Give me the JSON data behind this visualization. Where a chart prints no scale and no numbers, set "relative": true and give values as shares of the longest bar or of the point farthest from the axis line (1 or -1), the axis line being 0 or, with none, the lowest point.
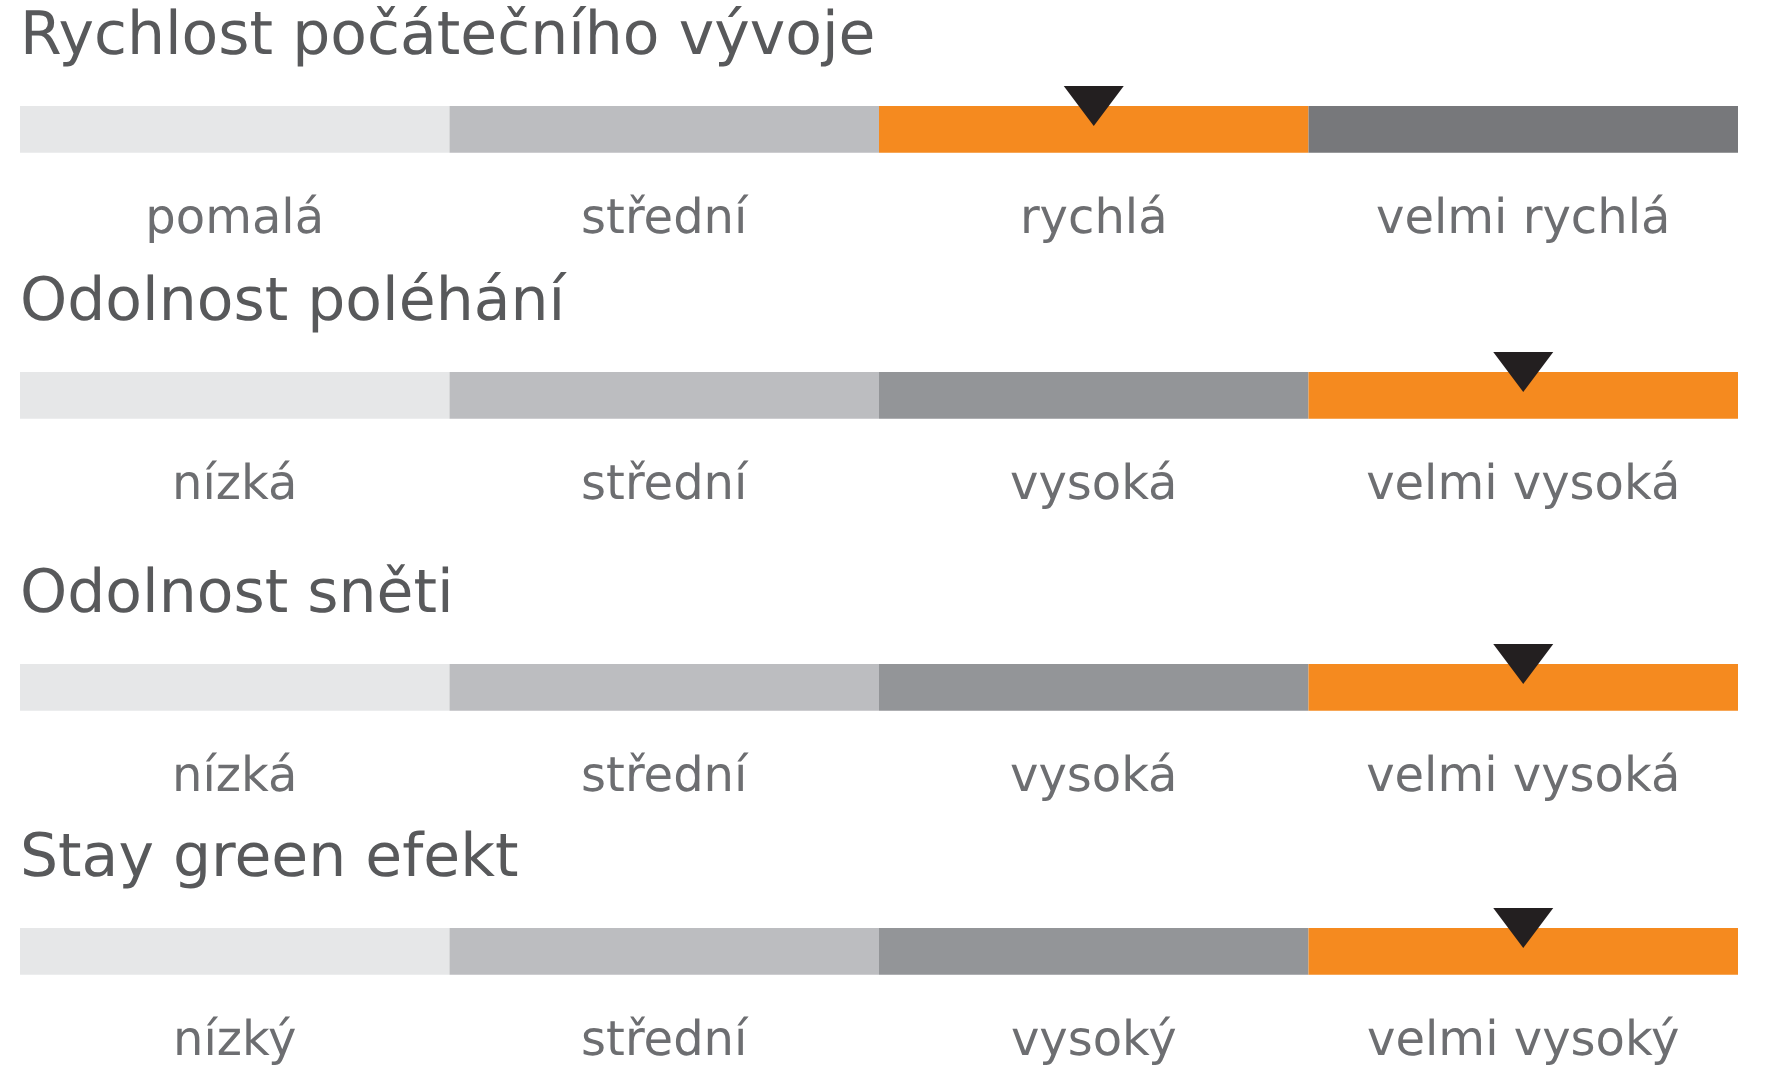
{
  "chart_data": [
    {
      "type": "bar",
      "orientation": "horizontal",
      "stacked": true,
      "relative": true,
      "title": "Rychlost počátečního vývoje",
      "categories": [
        null
      ],
      "series": [
        {
          "name": "pomalá",
          "color": "#e6e7e8",
          "values": [
            0.25
          ]
        },
        {
          "name": "střední",
          "color": "#bcbdc0",
          "values": [
            0.25
          ]
        },
        {
          "name": "rychlá",
          "color": "#f58a1f",
          "values": [
            0.25
          ],
          "marker": "triangle"
        },
        {
          "name": "velmi rychlá",
          "color": "#77787b",
          "values": [
            0.25
          ]
        }
      ]
    },
    {
      "type": "bar",
      "orientation": "horizontal",
      "stacked": true,
      "relative": true,
      "title": "Odolnost poléhání",
      "categories": [
        null
      ],
      "series": [
        {
          "name": "nízká",
          "color": "#e6e7e8",
          "values": [
            0.25
          ]
        },
        {
          "name": "střední",
          "color": "#bcbdc0",
          "values": [
            0.25
          ]
        },
        {
          "name": "vysoká",
          "color": "#939598",
          "values": [
            0.25
          ]
        },
        {
          "name": "velmi vysoká",
          "color": "#f58a1f",
          "values": [
            0.25
          ],
          "marker": "triangle"
        }
      ]
    },
    {
      "type": "bar",
      "orientation": "horizontal",
      "stacked": true,
      "relative": true,
      "title": "Odolnost sněti",
      "categories": [
        null
      ],
      "series": [
        {
          "name": "nízká",
          "color": "#e6e7e8",
          "values": [
            0.25
          ]
        },
        {
          "name": "střední",
          "color": "#bcbdc0",
          "values": [
            0.25
          ]
        },
        {
          "name": "vysoká",
          "color": "#939598",
          "values": [
            0.25
          ]
        },
        {
          "name": "velmi vysoká",
          "color": "#f58a1f",
          "values": [
            0.25
          ],
          "marker": "triangle"
        }
      ]
    },
    {
      "type": "bar",
      "orientation": "horizontal",
      "stacked": true,
      "relative": true,
      "title": "Stay green efekt",
      "categories": [
        null
      ],
      "series": [
        {
          "name": "nízký",
          "color": "#e6e7e8",
          "values": [
            0.25
          ]
        },
        {
          "name": "střední",
          "color": "#bcbdc0",
          "values": [
            0.25
          ]
        },
        {
          "name": "vysoký",
          "color": "#939598",
          "values": [
            0.25
          ]
        },
        {
          "name": "velmi vysoký",
          "color": "#f58a1f",
          "values": [
            0.25
          ],
          "marker": "triangle"
        }
      ]
    }
  ]
}
